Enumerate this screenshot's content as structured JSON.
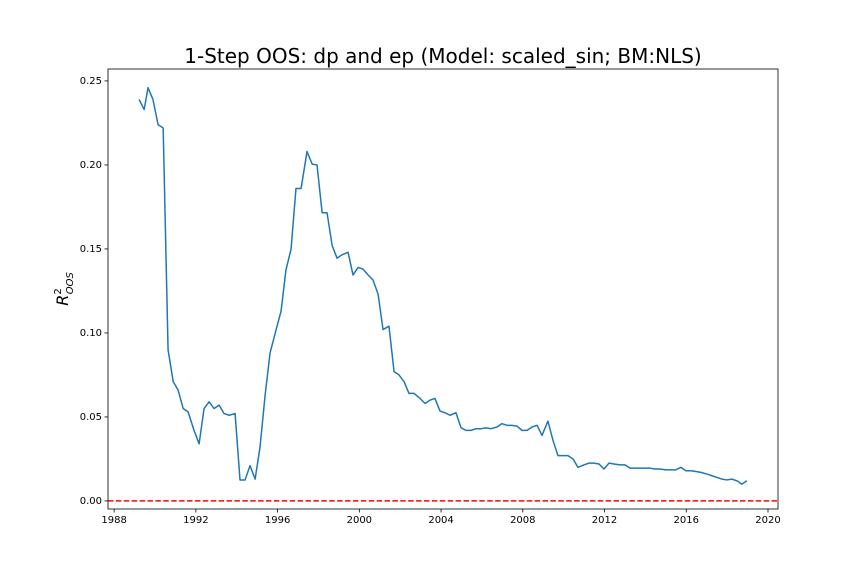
{
  "chart_data": {
    "type": "line",
    "title": "1-Step OOS: dp and ep (Model: scaled_sin; BM:NLS)",
    "ylabel": {
      "base": "R",
      "sup": "2",
      "sub": "OOS"
    },
    "x": [
      1989.22,
      1989.47,
      1989.66,
      1989.9,
      1990.15,
      1990.4,
      1990.64,
      1990.89,
      1991.13,
      1991.38,
      1991.62,
      1991.91,
      1992.16,
      1992.4,
      1992.65,
      1992.89,
      1993.14,
      1993.38,
      1993.63,
      1993.92,
      1994.16,
      1994.41,
      1994.65,
      1994.9,
      1995.14,
      1995.39,
      1995.63,
      1995.93,
      1996.17,
      1996.41,
      1996.66,
      1996.9,
      1997.15,
      1997.44,
      1997.69,
      1997.93,
      1998.18,
      1998.42,
      1998.67,
      1998.91,
      1999.15,
      1999.45,
      1999.69,
      1999.94,
      2000.18,
      2000.43,
      2000.67,
      2000.92,
      2001.16,
      2001.45,
      2001.7,
      2001.94,
      2002.19,
      2002.43,
      2002.68,
      2002.97,
      2003.22,
      2003.46,
      2003.7,
      2003.95,
      2004.19,
      2004.44,
      2004.73,
      2004.98,
      2005.22,
      2005.47,
      2005.71,
      2005.96,
      2006.2,
      2006.44,
      2006.74,
      2006.98,
      2007.23,
      2007.47,
      2007.72,
      2007.96,
      2008.21,
      2008.45,
      2008.7,
      2008.94,
      2009.23,
      2009.48,
      2009.72,
      2009.97,
      2010.21,
      2010.46,
      2010.7,
      2011.0,
      2011.24,
      2011.48,
      2011.73,
      2011.97,
      2012.22,
      2012.46,
      2012.76,
      2013.0,
      2013.25,
      2013.49,
      2013.73,
      2013.98,
      2014.22,
      2014.47,
      2014.71,
      2015.0,
      2015.25,
      2015.49,
      2015.74,
      2015.98,
      2016.23,
      2016.47,
      2016.72,
      2017.01,
      2017.26,
      2017.5,
      2017.75,
      2017.99,
      2018.23,
      2018.48,
      2018.72,
      2018.97
    ],
    "series": [
      {
        "color": "#1f77b4",
        "values": [
          0.239,
          0.233,
          0.246,
          0.239,
          0.224,
          0.222,
          0.09,
          0.071,
          0.066,
          0.055,
          0.053,
          0.042,
          0.034,
          0.055,
          0.059,
          0.055,
          0.057,
          0.052,
          0.051,
          0.052,
          0.0125,
          0.0125,
          0.021,
          0.013,
          0.032,
          0.063,
          0.088,
          0.102,
          0.113,
          0.1375,
          0.15,
          0.186,
          0.186,
          0.208,
          0.2005,
          0.2,
          0.1715,
          0.1715,
          0.152,
          0.1445,
          0.1465,
          0.148,
          0.1345,
          0.139,
          0.138,
          0.1345,
          0.1315,
          0.123,
          0.102,
          0.104,
          0.077,
          0.075,
          0.071,
          0.064,
          0.064,
          0.061,
          0.058,
          0.06,
          0.061,
          0.0535,
          0.0525,
          0.051,
          0.0525,
          0.0435,
          0.042,
          0.042,
          0.043,
          0.043,
          0.0435,
          0.043,
          0.044,
          0.046,
          0.045,
          0.045,
          0.0445,
          0.042,
          0.042,
          0.044,
          0.045,
          0.039,
          0.0475,
          0.036,
          0.027,
          0.027,
          0.027,
          0.025,
          0.02,
          0.0215,
          0.0225,
          0.0225,
          0.022,
          0.019,
          0.0225,
          0.022,
          0.0215,
          0.0215,
          0.0195,
          0.0195,
          0.0195,
          0.0195,
          0.0195,
          0.019,
          0.019,
          0.0185,
          0.0185,
          0.0185,
          0.02,
          0.018,
          0.018,
          0.0175,
          0.017,
          0.016,
          0.015,
          0.014,
          0.013,
          0.0125,
          0.013,
          0.012,
          0.01,
          0.012
        ]
      }
    ],
    "hline": {
      "value": 0,
      "color": "#ff0000"
    },
    "xlim": [
      1987.7,
      2020.49
    ],
    "ylim": [
      -0.0048,
      0.2571
    ],
    "xticks": [
      1988,
      1992,
      1996,
      2000,
      2004,
      2008,
      2012,
      2016,
      2020
    ],
    "yticks": [
      {
        "value": 0,
        "label": "0.00"
      },
      {
        "value": 0.05,
        "label": "0.05"
      },
      {
        "value": 0.1,
        "label": "0.10"
      },
      {
        "value": 0.15,
        "label": "0.15"
      },
      {
        "value": 0.2,
        "label": "0.20"
      },
      {
        "value": 0.25,
        "label": "0.25"
      }
    ]
  }
}
